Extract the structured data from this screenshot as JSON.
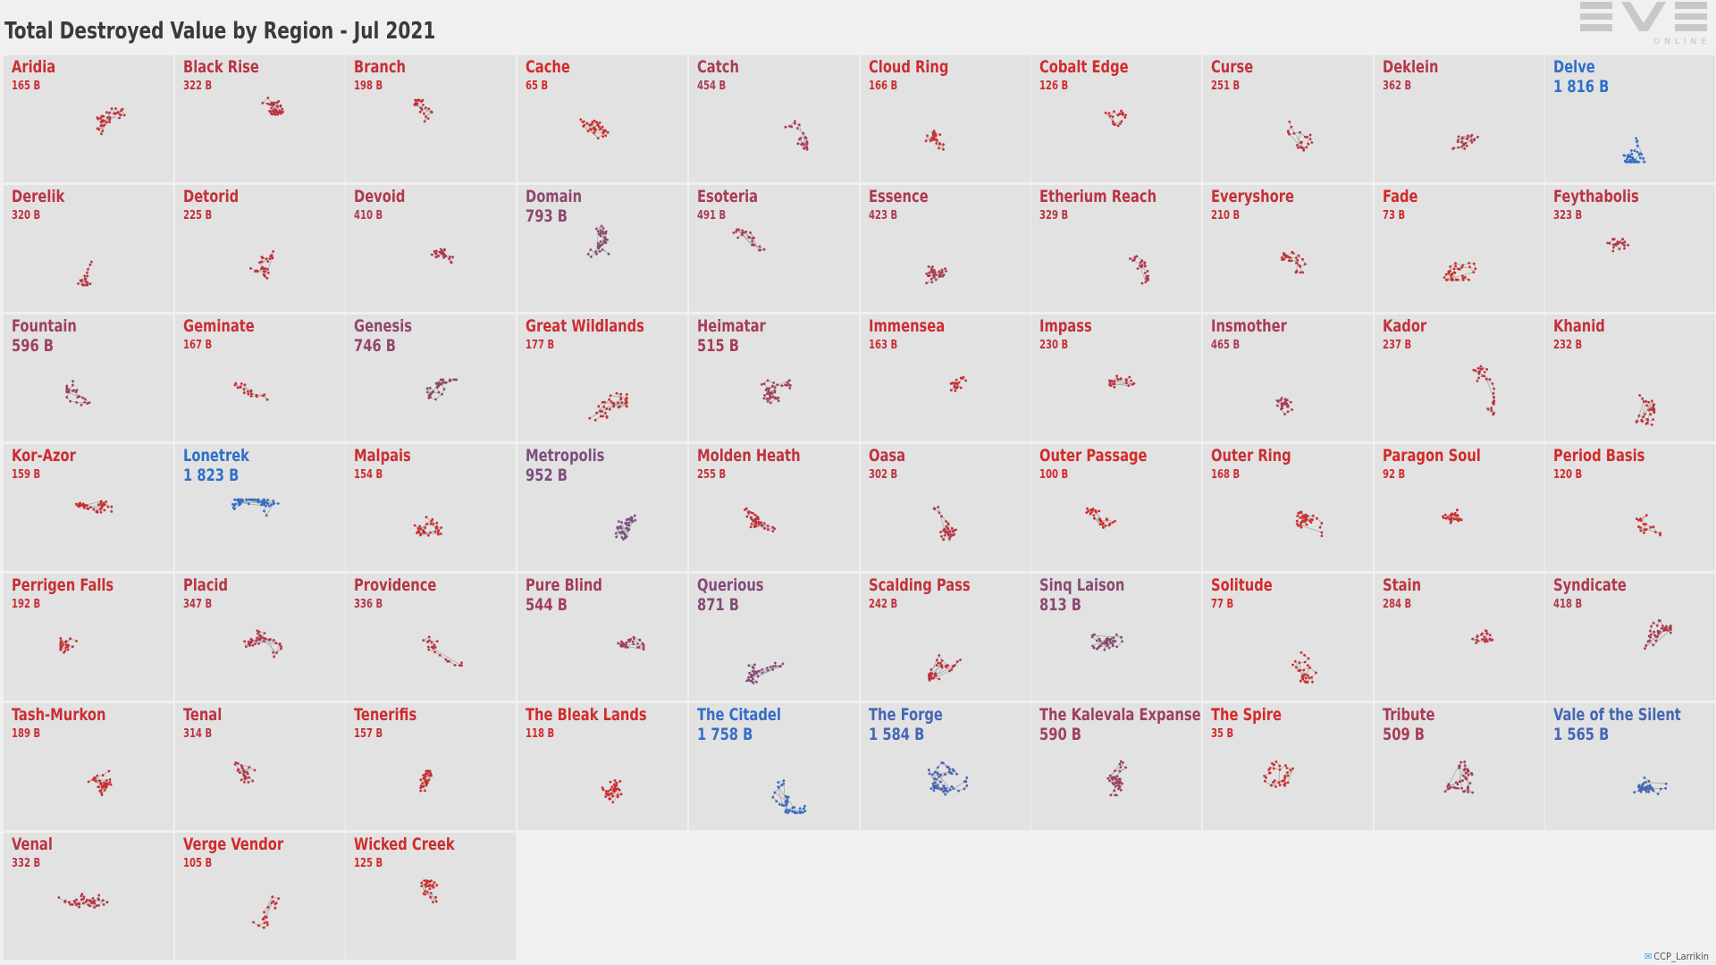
{
  "title": "Total Destroyed Value by Region - Jul 2021",
  "logo": {
    "word": "EVE",
    "sub": "ONLINE"
  },
  "credit": "CCP_Larrikin",
  "colors": {
    "low": "#d42a2a",
    "high": "#2f6fca",
    "tile": "#e2e2e2",
    "background": "#f0f0f0"
  },
  "chart_data": {
    "type": "small-multiples",
    "title": "Total Destroyed Value by Region - Jul 2021",
    "unit": "B",
    "regions": [
      {
        "name": "Aridia",
        "label": "165 B",
        "value": 165
      },
      {
        "name": "Black Rise",
        "label": "322 B",
        "value": 322
      },
      {
        "name": "Branch",
        "label": "198 B",
        "value": 198
      },
      {
        "name": "Cache",
        "label": "65 B",
        "value": 65
      },
      {
        "name": "Catch",
        "label": "454 B",
        "value": 454
      },
      {
        "name": "Cloud Ring",
        "label": "166 B",
        "value": 166
      },
      {
        "name": "Cobalt Edge",
        "label": "126 B",
        "value": 126
      },
      {
        "name": "Curse",
        "label": "251 B",
        "value": 251
      },
      {
        "name": "Deklein",
        "label": "362 B",
        "value": 362
      },
      {
        "name": "Delve",
        "label": "1 816 B",
        "value": 1816
      },
      {
        "name": "Derelik",
        "label": "320 B",
        "value": 320
      },
      {
        "name": "Detorid",
        "label": "225 B",
        "value": 225
      },
      {
        "name": "Devoid",
        "label": "410 B",
        "value": 410
      },
      {
        "name": "Domain",
        "label": "793 B",
        "value": 793
      },
      {
        "name": "Esoteria",
        "label": "491 B",
        "value": 491
      },
      {
        "name": "Essence",
        "label": "423 B",
        "value": 423
      },
      {
        "name": "Etherium Reach",
        "label": "329 B",
        "value": 329
      },
      {
        "name": "Everyshore",
        "label": "210 B",
        "value": 210
      },
      {
        "name": "Fade",
        "label": "73 B",
        "value": 73
      },
      {
        "name": "Feythabolis",
        "label": "323 B",
        "value": 323
      },
      {
        "name": "Fountain",
        "label": "596 B",
        "value": 596
      },
      {
        "name": "Geminate",
        "label": "167 B",
        "value": 167
      },
      {
        "name": "Genesis",
        "label": "746 B",
        "value": 746
      },
      {
        "name": "Great Wildlands",
        "label": "177 B",
        "value": 177
      },
      {
        "name": "Heimatar",
        "label": "515 B",
        "value": 515
      },
      {
        "name": "Immensea",
        "label": "163 B",
        "value": 163
      },
      {
        "name": "Impass",
        "label": "230 B",
        "value": 230
      },
      {
        "name": "Insmother",
        "label": "465 B",
        "value": 465
      },
      {
        "name": "Kador",
        "label": "237 B",
        "value": 237
      },
      {
        "name": "Khanid",
        "label": "232 B",
        "value": 232
      },
      {
        "name": "Kor-Azor",
        "label": "159 B",
        "value": 159
      },
      {
        "name": "Lonetrek",
        "label": "1 823 B",
        "value": 1823
      },
      {
        "name": "Malpais",
        "label": "154 B",
        "value": 154
      },
      {
        "name": "Metropolis",
        "label": "952 B",
        "value": 952
      },
      {
        "name": "Molden Heath",
        "label": "255 B",
        "value": 255
      },
      {
        "name": "Oasa",
        "label": "302 B",
        "value": 302
      },
      {
        "name": "Outer Passage",
        "label": "100 B",
        "value": 100
      },
      {
        "name": "Outer Ring",
        "label": "168 B",
        "value": 168
      },
      {
        "name": "Paragon Soul",
        "label": "92 B",
        "value": 92
      },
      {
        "name": "Period Basis",
        "label": "120 B",
        "value": 120
      },
      {
        "name": "Perrigen Falls",
        "label": "192 B",
        "value": 192
      },
      {
        "name": "Placid",
        "label": "347 B",
        "value": 347
      },
      {
        "name": "Providence",
        "label": "336 B",
        "value": 336
      },
      {
        "name": "Pure Blind",
        "label": "544 B",
        "value": 544
      },
      {
        "name": "Querious",
        "label": "871 B",
        "value": 871
      },
      {
        "name": "Scalding Pass",
        "label": "242 B",
        "value": 242
      },
      {
        "name": "Sinq Laison",
        "label": "813 B",
        "value": 813
      },
      {
        "name": "Solitude",
        "label": "77 B",
        "value": 77
      },
      {
        "name": "Stain",
        "label": "284 B",
        "value": 284
      },
      {
        "name": "Syndicate",
        "label": "418 B",
        "value": 418
      },
      {
        "name": "Tash-Murkon",
        "label": "189 B",
        "value": 189
      },
      {
        "name": "Tenal",
        "label": "314 B",
        "value": 314
      },
      {
        "name": "Tenerifis",
        "label": "157 B",
        "value": 157
      },
      {
        "name": "The Bleak Lands",
        "label": "118 B",
        "value": 118
      },
      {
        "name": "The Citadel",
        "label": "1 758 B",
        "value": 1758
      },
      {
        "name": "The Forge",
        "label": "1 584 B",
        "value": 1584
      },
      {
        "name": "The Kalevala Expanse",
        "label": "590 B",
        "value": 590
      },
      {
        "name": "The Spire",
        "label": "35 B",
        "value": 35
      },
      {
        "name": "Tribute",
        "label": "509 B",
        "value": 509
      },
      {
        "name": "Vale of the Silent",
        "label": "1 565 B",
        "value": 1565
      },
      {
        "name": "Venal",
        "label": "332 B",
        "value": 332
      },
      {
        "name": "Verge Vendor",
        "label": "105 B",
        "value": 105
      },
      {
        "name": "Wicked Creek",
        "label": "125 B",
        "value": 125
      }
    ]
  }
}
